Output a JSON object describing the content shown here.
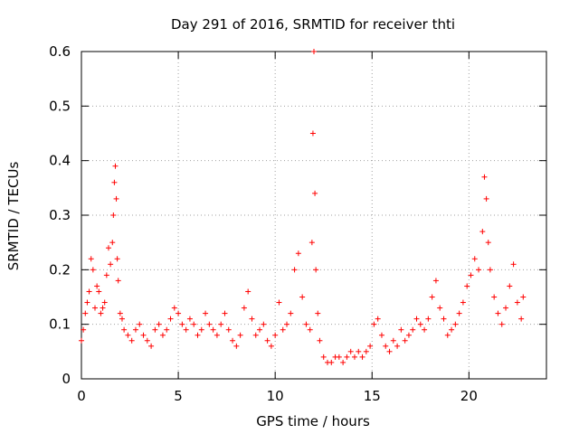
{
  "chart_data": {
    "type": "scatter",
    "title": "Day 291 of 2016, SRMTID for receiver thti",
    "xlabel": "GPS time / hours",
    "ylabel": "SRMTID / TECUs",
    "xlim": [
      0,
      24
    ],
    "ylim": [
      0,
      0.6
    ],
    "xticks": [
      0,
      5,
      10,
      15,
      20
    ],
    "xtick_labels": [
      "0",
      "5",
      "10",
      "15",
      "20"
    ],
    "yticks": [
      0,
      0.1,
      0.2,
      0.3,
      0.4,
      0.5,
      0.6
    ],
    "ytick_labels": [
      "0",
      "0.1",
      "0.2",
      "0.3",
      "0.4",
      "0.5",
      "0.6"
    ],
    "grid": true,
    "marker": "+",
    "color": "#ff0000",
    "series": [
      {
        "name": "SRMTID",
        "x": [
          0.0,
          0.1,
          0.2,
          0.3,
          0.4,
          0.5,
          0.6,
          0.7,
          0.8,
          0.9,
          1.0,
          1.1,
          1.2,
          1.3,
          1.4,
          1.5,
          1.6,
          1.65,
          1.7,
          1.75,
          1.8,
          1.85,
          1.9,
          2.0,
          2.1,
          2.2,
          2.4,
          2.6,
          2.8,
          3.0,
          3.2,
          3.4,
          3.6,
          3.8,
          4.0,
          4.2,
          4.4,
          4.6,
          4.8,
          5.0,
          5.2,
          5.4,
          5.6,
          5.8,
          6.0,
          6.2,
          6.4,
          6.6,
          6.8,
          7.0,
          7.2,
          7.4,
          7.6,
          7.8,
          8.0,
          8.2,
          8.4,
          8.6,
          8.8,
          9.0,
          9.2,
          9.4,
          9.6,
          9.8,
          10.0,
          10.2,
          10.4,
          10.6,
          10.8,
          11.0,
          11.2,
          11.4,
          11.6,
          11.8,
          11.9,
          11.95,
          12.0,
          12.05,
          12.1,
          12.2,
          12.3,
          12.5,
          12.7,
          12.9,
          13.1,
          13.3,
          13.5,
          13.7,
          13.9,
          14.1,
          14.3,
          14.5,
          14.7,
          14.9,
          15.1,
          15.3,
          15.5,
          15.7,
          15.9,
          16.1,
          16.3,
          16.5,
          16.7,
          16.9,
          17.1,
          17.3,
          17.5,
          17.7,
          17.9,
          18.1,
          18.3,
          18.5,
          18.7,
          18.9,
          19.1,
          19.3,
          19.5,
          19.7,
          19.9,
          20.1,
          20.3,
          20.5,
          20.7,
          20.8,
          20.9,
          21.0,
          21.1,
          21.3,
          21.5,
          21.7,
          21.9,
          22.1,
          22.3,
          22.5,
          22.7,
          22.8
        ],
        "y": [
          0.07,
          0.09,
          0.12,
          0.14,
          0.16,
          0.22,
          0.2,
          0.13,
          0.17,
          0.16,
          0.12,
          0.13,
          0.14,
          0.19,
          0.24,
          0.21,
          0.25,
          0.3,
          0.36,
          0.39,
          0.33,
          0.22,
          0.18,
          0.12,
          0.11,
          0.09,
          0.08,
          0.07,
          0.09,
          0.1,
          0.08,
          0.07,
          0.06,
          0.09,
          0.1,
          0.08,
          0.09,
          0.11,
          0.13,
          0.12,
          0.1,
          0.09,
          0.11,
          0.1,
          0.08,
          0.09,
          0.12,
          0.1,
          0.09,
          0.08,
          0.1,
          0.12,
          0.09,
          0.07,
          0.06,
          0.08,
          0.13,
          0.16,
          0.11,
          0.08,
          0.09,
          0.1,
          0.07,
          0.06,
          0.08,
          0.14,
          0.09,
          0.1,
          0.12,
          0.2,
          0.23,
          0.15,
          0.1,
          0.09,
          0.25,
          0.45,
          0.6,
          0.34,
          0.2,
          0.12,
          0.07,
          0.04,
          0.03,
          0.03,
          0.04,
          0.04,
          0.03,
          0.04,
          0.05,
          0.04,
          0.05,
          0.04,
          0.05,
          0.06,
          0.1,
          0.11,
          0.08,
          0.06,
          0.05,
          0.07,
          0.06,
          0.09,
          0.07,
          0.08,
          0.09,
          0.11,
          0.1,
          0.09,
          0.11,
          0.15,
          0.18,
          0.13,
          0.11,
          0.08,
          0.09,
          0.1,
          0.12,
          0.14,
          0.17,
          0.19,
          0.22,
          0.2,
          0.27,
          0.37,
          0.33,
          0.25,
          0.2,
          0.15,
          0.12,
          0.1,
          0.13,
          0.17,
          0.21,
          0.14,
          0.11,
          0.15
        ]
      }
    ]
  }
}
